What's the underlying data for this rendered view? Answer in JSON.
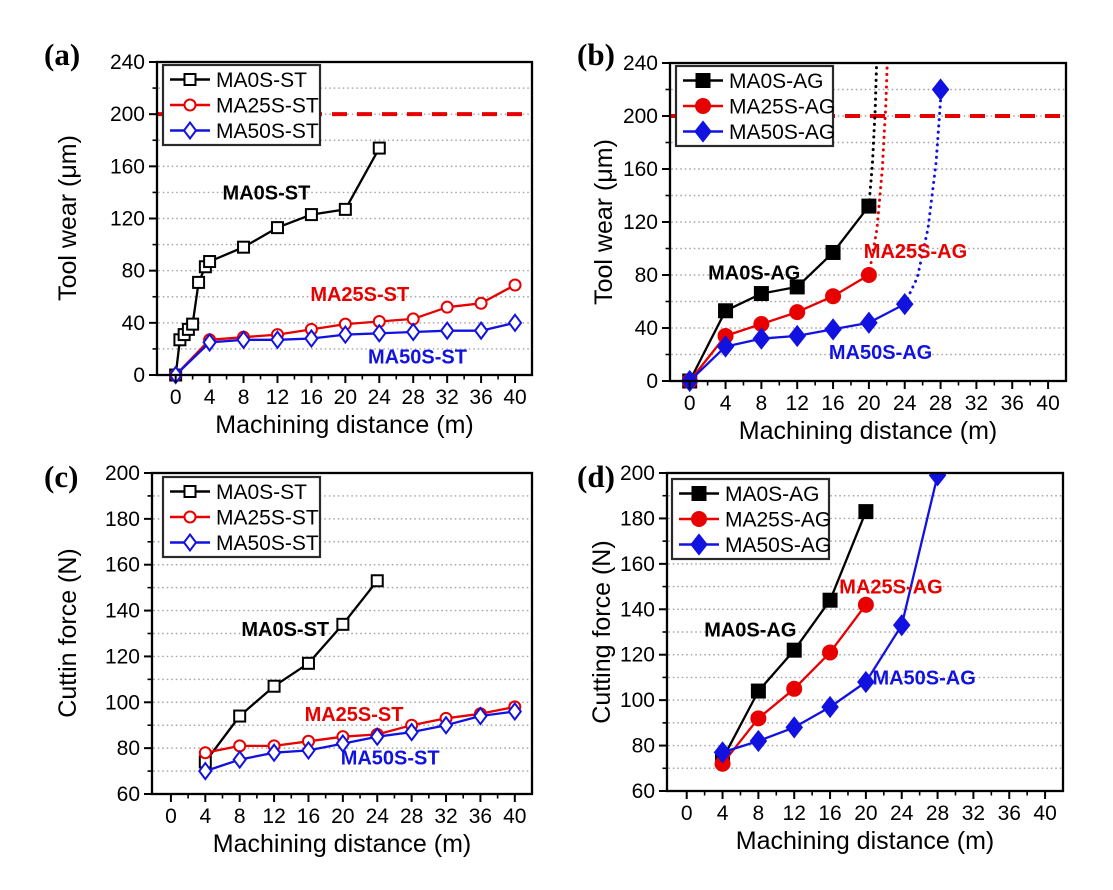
{
  "figure": {
    "background": "#ffffff",
    "description": "Four-panel line chart figure: tool wear and cutting force versus machining distance"
  },
  "colors": {
    "axis": "#000000",
    "grid": "#a8a8a8",
    "black_series": "#000000",
    "red_series": "#e80000",
    "blue_series": "#1212e0",
    "threshold": "#e60000",
    "legend_border": "#2a2a2a",
    "legend_bg": "#ffffff"
  },
  "chart_data": [
    {
      "id": "a",
      "type": "line",
      "title": "(a)",
      "xlabel": "Machining distance (m)",
      "ylabel": "Tool wear (μm)",
      "xlim": [
        -2.2,
        42
      ],
      "ylim": [
        0,
        240
      ],
      "x_major_ticks": [
        0,
        4,
        8,
        12,
        16,
        20,
        24,
        28,
        32,
        36,
        40
      ],
      "x_minor_step": 2,
      "y_major_step": 40,
      "y_minor_step": 20,
      "grid_step": 20,
      "legend_position": "top-left",
      "threshold_y": 200,
      "series": [
        {
          "name": "MA0S-ST",
          "color": "#000000",
          "marker": "square",
          "fill": "open",
          "points": [
            [
              0,
              0
            ],
            [
              0.5,
              27
            ],
            [
              1,
              31
            ],
            [
              1.5,
              35
            ],
            [
              2,
              39
            ],
            [
              2.7,
              71
            ],
            [
              3.5,
              83
            ],
            [
              4,
              87
            ],
            [
              8,
              98
            ],
            [
              12,
              113
            ],
            [
              16,
              123
            ],
            [
              20,
              127
            ],
            [
              24,
              174
            ]
          ]
        },
        {
          "name": "MA25S-ST",
          "color": "#e80000",
          "marker": "circle",
          "fill": "open",
          "points": [
            [
              0,
              0
            ],
            [
              4,
              27
            ],
            [
              8,
              29
            ],
            [
              12,
              31
            ],
            [
              16,
              35
            ],
            [
              20,
              39
            ],
            [
              24,
              41
            ],
            [
              28,
              43
            ],
            [
              32,
              52
            ],
            [
              36,
              55
            ],
            [
              40,
              69
            ]
          ]
        },
        {
          "name": "MA50S-ST",
          "color": "#1212e0",
          "marker": "diamond",
          "fill": "open",
          "points": [
            [
              0,
              0
            ],
            [
              4,
              25
            ],
            [
              8,
              27
            ],
            [
              12,
              27
            ],
            [
              16,
              28
            ],
            [
              20,
              31
            ],
            [
              24,
              32
            ],
            [
              28,
              33
            ],
            [
              32,
              34
            ],
            [
              36,
              34
            ],
            [
              40,
              40
            ]
          ]
        }
      ],
      "annotations": [
        {
          "text": "MA0S-ST",
          "color": "#000000",
          "x": 10.7,
          "y": 140
        },
        {
          "text": "MA25S-ST",
          "color": "#e80000",
          "x": 21.7,
          "y": 62
        },
        {
          "text": "MA50S-ST",
          "color": "#1212e0",
          "x": 28.5,
          "y": 14
        }
      ]
    },
    {
      "id": "b",
      "type": "line",
      "title": "(b)",
      "xlabel": "Machining distance (m)",
      "ylabel": "Tool wear (μm)",
      "xlim": [
        -2.2,
        42
      ],
      "ylim": [
        0,
        240
      ],
      "x_major_ticks": [
        0,
        4,
        8,
        12,
        16,
        20,
        24,
        28,
        32,
        36,
        40
      ],
      "x_minor_step": 2,
      "y_major_step": 40,
      "y_minor_step": 20,
      "grid_step": 20,
      "legend_position": "top-left",
      "threshold_y": 200,
      "series": [
        {
          "name": "MA0S-AG",
          "color": "#000000",
          "marker": "square",
          "fill": "solid",
          "points": [
            [
              0,
              0
            ],
            [
              4,
              53
            ],
            [
              8,
              66
            ],
            [
              12,
              71
            ],
            [
              16,
              97
            ],
            [
              20,
              132
            ]
          ],
          "dotted_tail": [
            [
              20,
              132
            ],
            [
              20.4,
              165
            ],
            [
              20.7,
              205
            ],
            [
              20.9,
              250
            ]
          ]
        },
        {
          "name": "MA25S-AG",
          "color": "#e80000",
          "marker": "circle",
          "fill": "solid",
          "points": [
            [
              0,
              0
            ],
            [
              4,
              34
            ],
            [
              8,
              43
            ],
            [
              12,
              52
            ],
            [
              16,
              64
            ],
            [
              20,
              80
            ]
          ],
          "dotted_tail": [
            [
              20,
              80
            ],
            [
              20.9,
              115
            ],
            [
              21.5,
              160
            ],
            [
              21.9,
              210
            ],
            [
              22.1,
              250
            ]
          ]
        },
        {
          "name": "MA50S-AG",
          "color": "#1212e0",
          "marker": "diamond",
          "fill": "solid",
          "points": [
            [
              0,
              0
            ],
            [
              4,
              26
            ],
            [
              8,
              32
            ],
            [
              12,
              34
            ],
            [
              16,
              39
            ],
            [
              20,
              44
            ],
            [
              24,
              58
            ]
          ],
          "dotted_tail": [
            [
              24,
              58
            ],
            [
              25.4,
              78
            ],
            [
              26.6,
              115
            ],
            [
              27.5,
              165
            ],
            [
              28,
              212
            ]
          ],
          "tail_marker": [
            28,
            220
          ]
        }
      ],
      "annotations": [
        {
          "text": "MA0S-AG",
          "color": "#000000",
          "x": 7.2,
          "y": 82
        },
        {
          "text": "MA25S-AG",
          "color": "#e80000",
          "x": 25.2,
          "y": 98
        },
        {
          "text": "MA50S-AG",
          "color": "#1212e0",
          "x": 21.3,
          "y": 22
        }
      ]
    },
    {
      "id": "c",
      "type": "line",
      "title": "(c)",
      "xlabel": "Machining distance (m)",
      "ylabel": "Cuttin force (N)",
      "xlim": [
        -2.2,
        42
      ],
      "ylim": [
        60,
        200
      ],
      "x_major_ticks": [
        0,
        4,
        8,
        12,
        16,
        20,
        24,
        28,
        32,
        36,
        40
      ],
      "x_minor_step": 2,
      "y_major_step": 20,
      "y_minor_step": 10,
      "grid_step": 10,
      "legend_position": "top-left",
      "threshold_y": null,
      "series": [
        {
          "name": "MA0S-ST",
          "color": "#000000",
          "marker": "square",
          "fill": "open",
          "points": [
            [
              4,
              74
            ],
            [
              8,
              94
            ],
            [
              12,
              107
            ],
            [
              16,
              117
            ],
            [
              20,
              134
            ],
            [
              24,
              153
            ]
          ]
        },
        {
          "name": "MA25S-ST",
          "color": "#e80000",
          "marker": "circle",
          "fill": "open",
          "points": [
            [
              4,
              78
            ],
            [
              8,
              81
            ],
            [
              12,
              81
            ],
            [
              16,
              83
            ],
            [
              20,
              85
            ],
            [
              24,
              86
            ],
            [
              28,
              90
            ],
            [
              32,
              93
            ],
            [
              36,
              95
            ],
            [
              40,
              98
            ]
          ]
        },
        {
          "name": "MA50S-ST",
          "color": "#1212e0",
          "marker": "diamond",
          "fill": "open",
          "points": [
            [
              4,
              70
            ],
            [
              8,
              75
            ],
            [
              12,
              78
            ],
            [
              16,
              79
            ],
            [
              20,
              82
            ],
            [
              24,
              85
            ],
            [
              28,
              87
            ],
            [
              32,
              90
            ],
            [
              36,
              94
            ],
            [
              40,
              96
            ]
          ]
        }
      ],
      "annotations": [
        {
          "text": "MA0S-ST",
          "color": "#000000",
          "x": 13.3,
          "y": 132
        },
        {
          "text": "MA25S-ST",
          "color": "#e80000",
          "x": 21.3,
          "y": 95
        },
        {
          "text": "MA50S-ST",
          "color": "#1212e0",
          "x": 25.5,
          "y": 76
        }
      ]
    },
    {
      "id": "d",
      "type": "line",
      "title": "(d)",
      "xlabel": "Machining distance (m)",
      "ylabel": "Cutting force (N)",
      "xlim": [
        -2.2,
        42
      ],
      "ylim": [
        60,
        200
      ],
      "x_major_ticks": [
        0,
        4,
        8,
        12,
        16,
        20,
        24,
        28,
        32,
        36,
        40
      ],
      "x_minor_step": 2,
      "y_major_step": 20,
      "y_minor_step": 10,
      "grid_step": 10,
      "legend_position": "top-left",
      "threshold_y": null,
      "series": [
        {
          "name": "MA0S-AG",
          "color": "#000000",
          "marker": "square",
          "fill": "solid",
          "points": [
            [
              4,
              74
            ],
            [
              8,
              104
            ],
            [
              12,
              122
            ],
            [
              16,
              144
            ],
            [
              20,
              183
            ]
          ]
        },
        {
          "name": "MA25S-AG",
          "color": "#e80000",
          "marker": "circle",
          "fill": "solid",
          "points": [
            [
              4,
              72
            ],
            [
              8,
              92
            ],
            [
              12,
              105
            ],
            [
              16,
              121
            ],
            [
              20,
              142
            ]
          ]
        },
        {
          "name": "MA50S-AG",
          "color": "#1212e0",
          "marker": "diamond",
          "fill": "solid",
          "points": [
            [
              4,
              77
            ],
            [
              8,
              82
            ],
            [
              12,
              88
            ],
            [
              16,
              97
            ],
            [
              20,
              108
            ],
            [
              24,
              133
            ],
            [
              28,
              199
            ]
          ]
        }
      ],
      "annotations": [
        {
          "text": "MA0S-AG",
          "color": "#000000",
          "x": 7.1,
          "y": 131
        },
        {
          "text": "MA25S-AG",
          "color": "#e80000",
          "x": 22.8,
          "y": 150
        },
        {
          "text": "MA50S-AG",
          "color": "#1212e0",
          "x": 26.5,
          "y": 110
        }
      ]
    }
  ]
}
